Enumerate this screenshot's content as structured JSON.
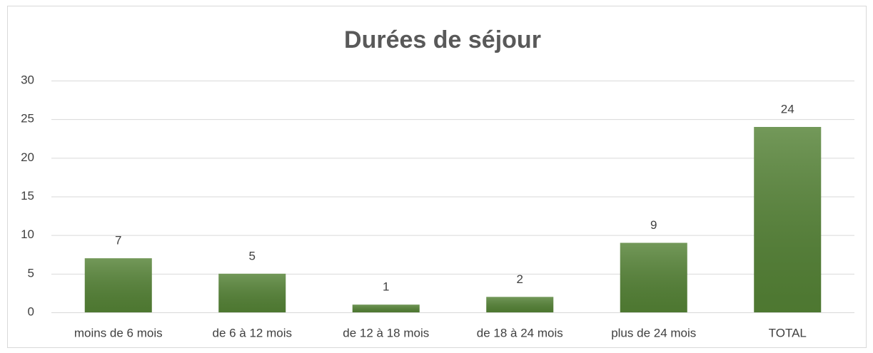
{
  "chart_data": {
    "type": "bar",
    "title": "Durées de séjour",
    "categories": [
      "moins de 6 mois",
      "de 6 à 12 mois",
      "de 12 à 18 mois",
      "de 18 à 24 mois",
      "plus de 24 mois",
      "TOTAL"
    ],
    "values": [
      7,
      5,
      1,
      2,
      9,
      24
    ],
    "color": "#548235",
    "ylim": [
      0,
      30
    ],
    "yticks": [
      0,
      5,
      10,
      15,
      20,
      25,
      30
    ],
    "grid": true,
    "data_labels": true
  }
}
